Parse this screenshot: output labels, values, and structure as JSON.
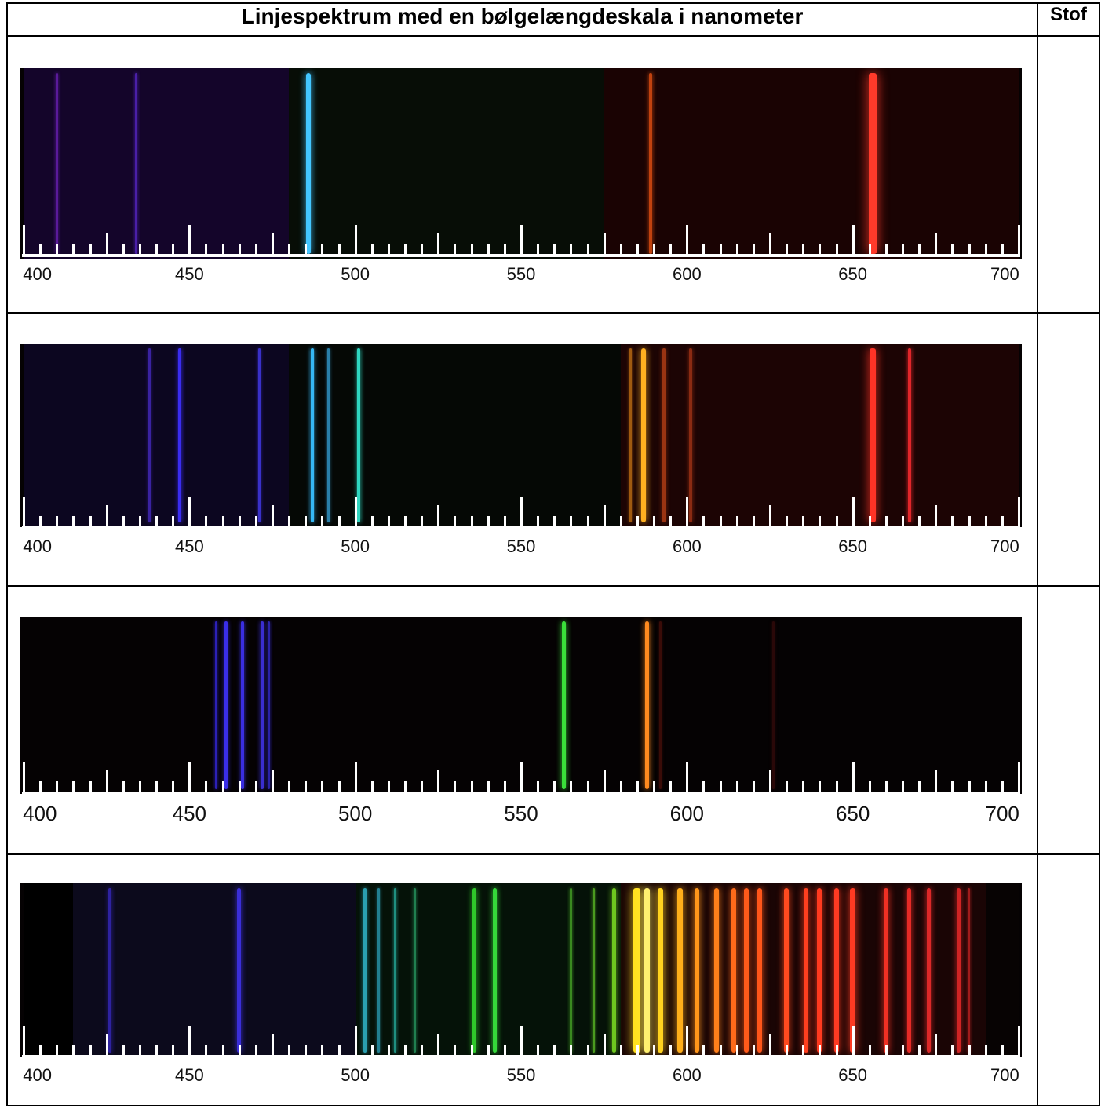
{
  "header": {
    "title": "Linjespektrum med en bølgelængdeskala i nanometer",
    "stof": "Stof"
  },
  "scale": {
    "min": 400,
    "max": 700,
    "labels": [
      "400",
      "450",
      "500",
      "550",
      "600",
      "650",
      "700"
    ]
  },
  "rows": [
    {
      "stof": "",
      "background": [
        {
          "from": 400,
          "to": 480,
          "color": "#14052a"
        },
        {
          "from": 480,
          "to": 575,
          "color": "#070d06"
        },
        {
          "from": 575,
          "to": 700,
          "color": "#1a0303"
        }
      ],
      "lines": [
        {
          "nm": 410,
          "color": "#5a1a9a",
          "width": 3
        },
        {
          "nm": 434,
          "color": "#4a1fa8",
          "width": 3
        },
        {
          "nm": 486,
          "color": "#43c6ff",
          "width": 6
        },
        {
          "nm": 589,
          "color": "#c0420f",
          "width": 4
        },
        {
          "nm": 656,
          "color": "#ff3a2a",
          "width": 10
        }
      ]
    },
    {
      "stof": "",
      "background": [
        {
          "from": 400,
          "to": 480,
          "color": "#0c0620"
        },
        {
          "from": 480,
          "to": 580,
          "color": "#050805"
        },
        {
          "from": 580,
          "to": 700,
          "color": "#1c0404"
        }
      ],
      "lines": [
        {
          "nm": 438,
          "color": "#3a22a0",
          "width": 3
        },
        {
          "nm": 447,
          "color": "#3a2cf0",
          "width": 4
        },
        {
          "nm": 471,
          "color": "#3930c8",
          "width": 3
        },
        {
          "nm": 487,
          "color": "#36b8f4",
          "width": 4
        },
        {
          "nm": 492,
          "color": "#2a7fa8",
          "width": 3
        },
        {
          "nm": 501,
          "color": "#2fd6c0",
          "width": 4
        },
        {
          "nm": 583,
          "color": "#a05a10",
          "width": 3
        },
        {
          "nm": 587,
          "color": "#ffb020",
          "width": 6
        },
        {
          "nm": 593,
          "color": "#9a3412",
          "width": 4
        },
        {
          "nm": 601,
          "color": "#8a2a12",
          "width": 4
        },
        {
          "nm": 656,
          "color": "#ff3326",
          "width": 8
        },
        {
          "nm": 667,
          "color": "#e0262a",
          "width": 4
        }
      ]
    },
    {
      "stof": "",
      "background": [
        {
          "from": 400,
          "to": 700,
          "color": "#050203"
        }
      ],
      "lines": [
        {
          "nm": 458,
          "color": "#2c20b8",
          "width": 3
        },
        {
          "nm": 461,
          "color": "#3a2ee8",
          "width": 4
        },
        {
          "nm": 466,
          "color": "#3a2ee0",
          "width": 4
        },
        {
          "nm": 472,
          "color": "#3a2ed0",
          "width": 4
        },
        {
          "nm": 474,
          "color": "#2a22a8",
          "width": 3
        },
        {
          "nm": 563,
          "color": "#3adf3a",
          "width": 5
        },
        {
          "nm": 588,
          "color": "#ff8a1f",
          "width": 5
        },
        {
          "nm": 592,
          "color": "#3a0c08",
          "width": 3
        },
        {
          "nm": 626,
          "color": "#2a0808",
          "width": 3
        }
      ]
    },
    {
      "stof": "",
      "background": [
        {
          "from": 400,
          "to": 415,
          "color": "#000000"
        },
        {
          "from": 415,
          "to": 500,
          "color": "#0c0a1c"
        },
        {
          "from": 500,
          "to": 580,
          "color": "#051208"
        },
        {
          "from": 580,
          "to": 690,
          "color": "#1a0505"
        },
        {
          "from": 690,
          "to": 700,
          "color": "#070303"
        }
      ],
      "lines": [
        {
          "nm": 426,
          "color": "#2e22a0",
          "width": 4
        },
        {
          "nm": 465,
          "color": "#3a2ed8",
          "width": 5
        },
        {
          "nm": 503,
          "color": "#2a9fb0",
          "width": 4
        },
        {
          "nm": 507,
          "color": "#227f90",
          "width": 3
        },
        {
          "nm": 512,
          "color": "#1f8f80",
          "width": 3
        },
        {
          "nm": 518,
          "color": "#207f50",
          "width": 3
        },
        {
          "nm": 536,
          "color": "#2fc82a",
          "width": 5
        },
        {
          "nm": 542,
          "color": "#35d83a",
          "width": 5
        },
        {
          "nm": 565,
          "color": "#3a8a20",
          "width": 3
        },
        {
          "nm": 572,
          "color": "#4a9a1f",
          "width": 3
        },
        {
          "nm": 578,
          "color": "#6ec81f",
          "width": 5
        },
        {
          "nm": 585,
          "color": "#ffe11f",
          "width": 9
        },
        {
          "nm": 588,
          "color": "#fff070",
          "width": 7
        },
        {
          "nm": 592,
          "color": "#ffd21f",
          "width": 7
        },
        {
          "nm": 598,
          "color": "#ffae1a",
          "width": 7
        },
        {
          "nm": 603,
          "color": "#ff961a",
          "width": 6
        },
        {
          "nm": 609,
          "color": "#ff7f1a",
          "width": 6
        },
        {
          "nm": 614,
          "color": "#ff6a1a",
          "width": 6
        },
        {
          "nm": 618,
          "color": "#ff5a1a",
          "width": 6
        },
        {
          "nm": 622,
          "color": "#ff561a",
          "width": 6
        },
        {
          "nm": 630,
          "color": "#ff4a1f",
          "width": 6
        },
        {
          "nm": 636,
          "color": "#ff3f1f",
          "width": 6
        },
        {
          "nm": 640,
          "color": "#ff3a1f",
          "width": 6
        },
        {
          "nm": 645,
          "color": "#ff3a22",
          "width": 6
        },
        {
          "nm": 650,
          "color": "#ff3a22",
          "width": 7
        },
        {
          "nm": 660,
          "color": "#f03024",
          "width": 6
        },
        {
          "nm": 667,
          "color": "#e62a26",
          "width": 5
        },
        {
          "nm": 673,
          "color": "#dc2828",
          "width": 5
        },
        {
          "nm": 682,
          "color": "#d02424",
          "width": 5
        },
        {
          "nm": 685,
          "color": "#a01c1c",
          "width": 3
        }
      ]
    }
  ]
}
